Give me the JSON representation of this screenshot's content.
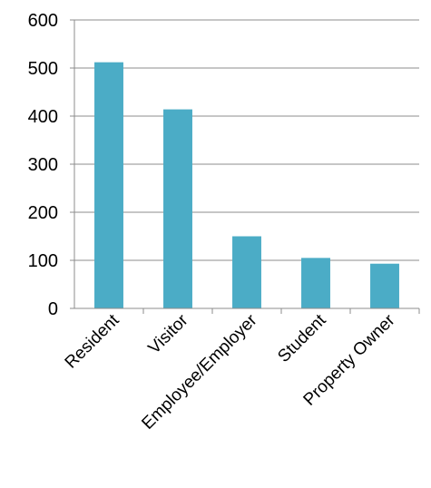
{
  "chart_data": {
    "type": "bar",
    "title": "",
    "xlabel": "",
    "ylabel": "",
    "categories": [
      "Resident",
      "Visitor",
      "Employee/Employer",
      "Student",
      "Property Owner"
    ],
    "values": [
      512,
      414,
      150,
      105,
      93
    ],
    "ylim": [
      0,
      600
    ],
    "yticks": [
      0,
      100,
      200,
      300,
      400,
      500,
      600
    ],
    "grid": true,
    "legend": "none",
    "colors": {
      "bar": "#4BACC6",
      "grid": "#8C8C8C"
    }
  }
}
